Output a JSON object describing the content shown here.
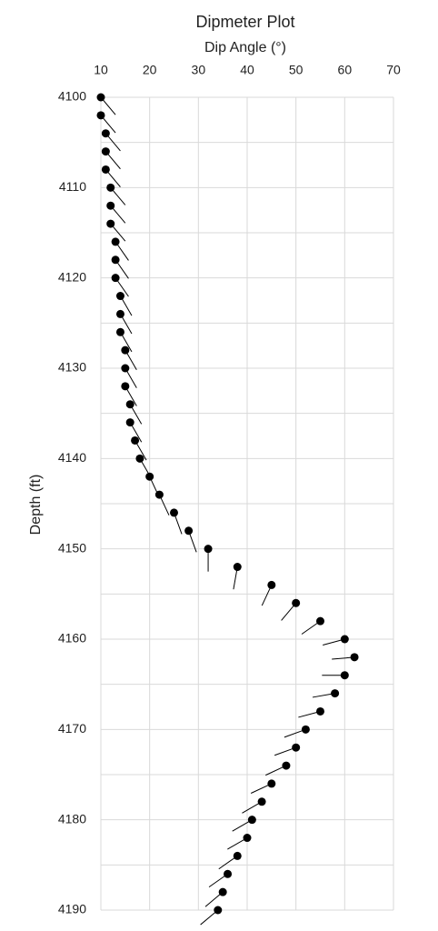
{
  "chart_data": {
    "type": "tadpole",
    "title": "Dipmeter Plot",
    "x_label": "Dip Angle (°)",
    "y_label": "Depth (ft)",
    "depth": [
      4100,
      4102,
      4104,
      4106,
      4108,
      4110,
      4112,
      4114,
      4116,
      4118,
      4120,
      4122,
      4124,
      4126,
      4128,
      4130,
      4132,
      4134,
      4136,
      4138,
      4140,
      4142,
      4144,
      4146,
      4148,
      4150,
      4152,
      4154,
      4156,
      4158,
      4160,
      4162,
      4164,
      4166,
      4168,
      4170,
      4172,
      4174,
      4176,
      4178,
      4180,
      4182,
      4184,
      4186,
      4188,
      4190
    ],
    "values": [
      10,
      10,
      11,
      11,
      11,
      12,
      12,
      12,
      13,
      13,
      13,
      14,
      14,
      14,
      15,
      15,
      15,
      16,
      16,
      17,
      18,
      20,
      22,
      25,
      28,
      32,
      38,
      45,
      50,
      55,
      60,
      62,
      60,
      58,
      55,
      52,
      50,
      48,
      45,
      43,
      41,
      40,
      38,
      36,
      35,
      34
    ],
    "azimuth": [
      140,
      140,
      140,
      140,
      140,
      140,
      140,
      140,
      145,
      145,
      145,
      150,
      150,
      150,
      150,
      150,
      150,
      150,
      150,
      150,
      150,
      155,
      155,
      160,
      160,
      180,
      190,
      205,
      220,
      235,
      255,
      265,
      270,
      260,
      255,
      250,
      250,
      245,
      245,
      240,
      240,
      240,
      235,
      235,
      230,
      230
    ],
    "color": "#000000",
    "xlim": [
      10,
      70
    ],
    "xticks": [
      10,
      20,
      30,
      40,
      50,
      60,
      70
    ],
    "ylim": [
      4100,
      4190
    ],
    "yticks": [
      4100,
      4110,
      4120,
      4130,
      4140,
      4150,
      4160,
      4170,
      4180,
      4190
    ],
    "y_minor_ticks": [
      4105,
      4115,
      4125,
      4135,
      4145,
      4155,
      4165,
      4175,
      4185
    ],
    "y_inverted": true,
    "grid": true
  }
}
